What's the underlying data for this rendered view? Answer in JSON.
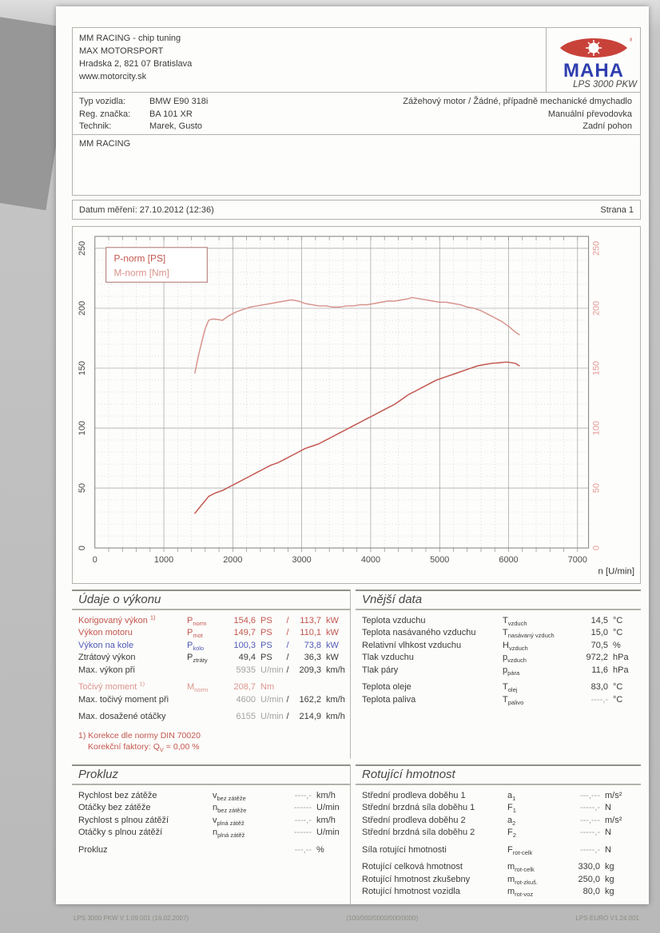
{
  "colors": {
    "red": "#c4564e",
    "pink": "#dc958e",
    "blue": "#5059b5",
    "black": "#3b3b3b",
    "gray": "#a3a3a3"
  },
  "header": {
    "company_lines": [
      "MM RACING - chip tuning",
      "MAX MOTORSPORT",
      "Hradska 2, 821 07 Bratislava",
      "www.motorcity.sk"
    ],
    "logo": {
      "brand": "MAHA",
      "model": "LPS 3000 PKW"
    }
  },
  "vehicle": {
    "rows": [
      {
        "label": "Typ vozidla:",
        "value": "BMW E90 318i"
      },
      {
        "label": "Reg. značka:",
        "value": "BA 101 XR"
      },
      {
        "label": "Technik:",
        "value": "Marek, Gusto"
      }
    ],
    "engine_lines": [
      "Zážehový motor / Žádné, případně mechanické dmychadlo",
      "Manuální převodovka",
      "Zadní pohon"
    ]
  },
  "note_box": {
    "text": "MM RACING"
  },
  "measurement": {
    "date_label": "Datum měření: 27.10.2012 (12:36)",
    "page_label": "Strana 1"
  },
  "chart_data": {
    "type": "line",
    "title": "",
    "xlabel": "n [U/min]",
    "ylabel": "",
    "xlim": [
      0,
      7000
    ],
    "ylim": [
      0,
      250
    ],
    "x_major": 1000,
    "x_minor": 200,
    "y_major": 50,
    "y_minor": 10,
    "x_ticks": [
      0,
      1000,
      2000,
      3000,
      4000,
      5000,
      6000,
      7000
    ],
    "y_ticks": [
      0,
      50,
      100,
      150,
      200,
      250
    ],
    "grid": true,
    "legend_position": "top-left",
    "series": [
      {
        "id": "power-curve",
        "name": "P-norm [PS]",
        "color": "#c2574e",
        "points": [
          [
            1450,
            29
          ],
          [
            1550,
            36
          ],
          [
            1650,
            43
          ],
          [
            1750,
            46
          ],
          [
            1850,
            48
          ],
          [
            1950,
            51
          ],
          [
            2050,
            54
          ],
          [
            2150,
            57
          ],
          [
            2250,
            60
          ],
          [
            2350,
            63
          ],
          [
            2450,
            66
          ],
          [
            2550,
            69
          ],
          [
            2650,
            71
          ],
          [
            2750,
            74
          ],
          [
            2850,
            77
          ],
          [
            2950,
            80
          ],
          [
            3050,
            83
          ],
          [
            3150,
            85
          ],
          [
            3250,
            87
          ],
          [
            3350,
            90
          ],
          [
            3450,
            93
          ],
          [
            3550,
            96
          ],
          [
            3650,
            99
          ],
          [
            3750,
            102
          ],
          [
            3850,
            105
          ],
          [
            3950,
            108
          ],
          [
            4050,
            111
          ],
          [
            4150,
            114
          ],
          [
            4250,
            117
          ],
          [
            4350,
            120
          ],
          [
            4450,
            124
          ],
          [
            4550,
            128
          ],
          [
            4650,
            131
          ],
          [
            4750,
            134
          ],
          [
            4850,
            137
          ],
          [
            4950,
            140
          ],
          [
            5050,
            142
          ],
          [
            5150,
            144
          ],
          [
            5250,
            146
          ],
          [
            5350,
            148
          ],
          [
            5450,
            150
          ],
          [
            5550,
            152
          ],
          [
            5650,
            153
          ],
          [
            5750,
            154
          ],
          [
            5850,
            154.5
          ],
          [
            5935,
            155
          ],
          [
            6000,
            155
          ],
          [
            6100,
            154
          ],
          [
            6155,
            152
          ]
        ]
      },
      {
        "id": "torque-curve",
        "name": "M-norm [Nm]",
        "color": "#d8938b",
        "points": [
          [
            1450,
            146
          ],
          [
            1500,
            160
          ],
          [
            1550,
            172
          ],
          [
            1600,
            183
          ],
          [
            1650,
            190
          ],
          [
            1700,
            191
          ],
          [
            1750,
            191
          ],
          [
            1850,
            190
          ],
          [
            1950,
            194
          ],
          [
            2050,
            197
          ],
          [
            2150,
            199
          ],
          [
            2250,
            201
          ],
          [
            2350,
            202
          ],
          [
            2450,
            203
          ],
          [
            2550,
            204
          ],
          [
            2650,
            205
          ],
          [
            2750,
            206
          ],
          [
            2850,
            207
          ],
          [
            2950,
            206
          ],
          [
            3050,
            204
          ],
          [
            3150,
            203
          ],
          [
            3250,
            202
          ],
          [
            3350,
            202
          ],
          [
            3450,
            201
          ],
          [
            3550,
            201
          ],
          [
            3650,
            202
          ],
          [
            3750,
            202
          ],
          [
            3850,
            203
          ],
          [
            3950,
            203
          ],
          [
            4050,
            204
          ],
          [
            4150,
            205
          ],
          [
            4250,
            206
          ],
          [
            4350,
            206
          ],
          [
            4450,
            207
          ],
          [
            4550,
            208
          ],
          [
            4600,
            209
          ],
          [
            4700,
            208
          ],
          [
            4800,
            207
          ],
          [
            4900,
            206
          ],
          [
            5000,
            205
          ],
          [
            5100,
            205
          ],
          [
            5200,
            204
          ],
          [
            5300,
            203
          ],
          [
            5400,
            201
          ],
          [
            5500,
            200
          ],
          [
            5600,
            198
          ],
          [
            5700,
            195
          ],
          [
            5800,
            192
          ],
          [
            5900,
            189
          ],
          [
            6000,
            185
          ],
          [
            6100,
            180
          ],
          [
            6155,
            178
          ]
        ]
      }
    ]
  },
  "sections": {
    "perf": {
      "title": "Údaje o výkonu",
      "rows": [
        {
          "label": "Korigovaný výkon",
          "sup": "1)",
          "color": "red",
          "sym": "P",
          "sub": "norm",
          "v1": "154,6",
          "u1": "PS",
          "sl": "/",
          "v2": "113,7",
          "u2": "kW"
        },
        {
          "label": "Výkon motoru",
          "color": "red",
          "sym": "P",
          "sub": "mot",
          "v1": "149,7",
          "u1": "PS",
          "sl": "/",
          "v2": "110,1",
          "u2": "kW"
        },
        {
          "label": "Výkon na kole",
          "color": "blue",
          "sym": "P",
          "sub": "kolo",
          "v1": "100,3",
          "u1": "PS",
          "sl": "/",
          "v2": "73,8",
          "u2": "kW"
        },
        {
          "label": "Ztrátový výkon",
          "color": "black",
          "sym": "P",
          "sub": "ztráty",
          "v1": "49,4",
          "u1": "PS",
          "sl": "/",
          "v2": "36,3",
          "u2": "kW"
        },
        {
          "label": "Max. výkon při",
          "color": "black",
          "v1": "5935",
          "u1": "U/min",
          "v1c": "gray",
          "sl": "/",
          "v2": "209,3",
          "u2": "km/h"
        },
        {
          "gap": true,
          "label": "Točivý moment",
          "sup": "1)",
          "color": "pink",
          "sym": "M",
          "sub": "norm",
          "v1": "208,7",
          "u1": "Nm"
        },
        {
          "label": "Max. točivý moment při",
          "color": "black",
          "v1": "4600",
          "u1": "U/min",
          "v1c": "gray",
          "sl": "/",
          "v2": "162,2",
          "u2": "km/h"
        },
        {
          "gap": true,
          "label": "Max. dosažené otáčky",
          "color": "black",
          "v1": "6155",
          "u1": "U/min",
          "v1c": "gray",
          "sl": "/",
          "v2": "214,9",
          "u2": "km/h"
        }
      ],
      "footnote": {
        "line1": "1) Korekce dle normy DIN 70020",
        "line2_pre": "Korekční faktory: Q",
        "line2_sub": "V",
        "line2_post": " =  0,00 %"
      }
    },
    "env": {
      "title": "Vnější data",
      "rows": [
        {
          "label": "Teplota vzduchu",
          "sym": "T",
          "sub": "vzduch",
          "val": "14,5",
          "unit": "°C"
        },
        {
          "label": "Teplota nasávaného vzduchu",
          "sym": "T",
          "sub": "nasávaný vzduch",
          "val": "15,0",
          "unit": "°C"
        },
        {
          "label": "Relativní vlhkost vzduchu",
          "sym": "H",
          "sub": "vzduch",
          "val": "70,5",
          "unit": "%"
        },
        {
          "label": "Tlak vzduchu",
          "sym": "p",
          "sub": "vzduch",
          "val": "972,2",
          "unit": "hPa"
        },
        {
          "label": "Tlak páry",
          "sym": "p",
          "sub": "pára",
          "val": "11,6",
          "unit": "hPa"
        },
        {
          "gap": true,
          "label": "Teplota oleje",
          "sym": "T",
          "sub": "olej",
          "val": "83,0",
          "unit": "°C"
        },
        {
          "label": "Teplota paliva",
          "sym": "T",
          "sub": "palivo",
          "val": "----,-",
          "valc": "gray",
          "unit": "°C"
        }
      ]
    },
    "slip": {
      "title": "Prokluz",
      "rows": [
        {
          "label": "Rychlost bez zátěže",
          "sym": "v",
          "sub": "bez zátěže",
          "val": "----,-",
          "valc": "gray",
          "unit": "km/h"
        },
        {
          "label": "Otáčky bez zátěže",
          "sym": "n",
          "sub": "bez zátěže",
          "val": "------",
          "valc": "gray",
          "unit": "U/min"
        },
        {
          "label": "Rychlost s plnou zátěží",
          "sym": "v",
          "sub": "plná zátěž",
          "val": "----,-",
          "valc": "gray",
          "unit": "km/h"
        },
        {
          "label": "Otáčky s plnou zátěží",
          "sym": "n",
          "sub": "plná zátěž",
          "val": "------",
          "valc": "gray",
          "unit": "U/min"
        },
        {
          "gap": true,
          "label": "Prokluz",
          "val": "---,--",
          "valc": "gray",
          "unit": "%"
        }
      ]
    },
    "rot": {
      "title": "Rotující hmotnost",
      "rows": [
        {
          "label": "Střední prodleva doběhu 1",
          "sym": "a",
          "sub": "1",
          "val": "---,---",
          "valc": "gray",
          "unit": "m/s²"
        },
        {
          "label": "Střední brzdná síla doběhu 1",
          "sym": "F",
          "sub": "1",
          "val": "-----,-",
          "valc": "gray",
          "unit": "N"
        },
        {
          "label": "Střední prodleva doběhu 2",
          "sym": "a",
          "sub": "2",
          "val": "---,---",
          "valc": "gray",
          "unit": "m/s²"
        },
        {
          "label": "Střední brzdná síla doběhu 2",
          "sym": "F",
          "sub": "2",
          "val": "-----,-",
          "valc": "gray",
          "unit": "N"
        },
        {
          "gap": true,
          "label": "Síla rotující hmotnosti",
          "sym": "F",
          "sub": "rot-celk",
          "val": "-----,-",
          "valc": "gray",
          "unit": "N"
        },
        {
          "gap": true,
          "label": "Rotující celková hmotnost",
          "sym": "m",
          "sub": "rot-celk",
          "val": "330,0",
          "unit": "kg"
        },
        {
          "label": "Rotující hmotnost zkušebny",
          "sym": "m",
          "sub": "rot-zkuš.",
          "val": "250,0",
          "unit": "kg"
        },
        {
          "label": "Rotující hmotnost vozidla",
          "sym": "m",
          "sub": "rot-voz",
          "val": "80,0",
          "unit": "kg"
        }
      ]
    }
  },
  "footer": {
    "left": "LPS 3000 PKW V 1.09.001 (16.02.2007)",
    "center": "(100/000/0000/000/0000)",
    "right": "LPS-EURO V1.24.001"
  }
}
